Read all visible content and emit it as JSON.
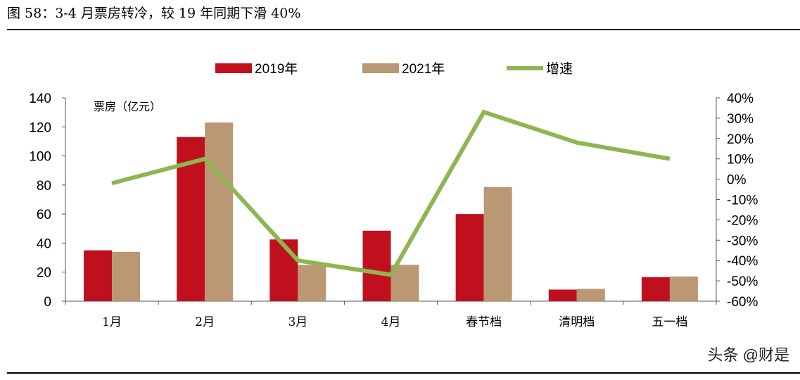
{
  "title": "图 58：3-4 月票房转冷，较 19 年同期下滑 40%",
  "watermark": "头条 @财是",
  "chart_data": {
    "type": "bar+line",
    "categories": [
      "1月",
      "2月",
      "3月",
      "4月",
      "春节档",
      "清明档",
      "五一档"
    ],
    "series": [
      {
        "name": "2019年",
        "type": "bar",
        "axis": "left",
        "color": "#C0101E",
        "values": [
          35,
          113,
          42.5,
          48.5,
          60,
          8,
          16.5
        ]
      },
      {
        "name": "2021年",
        "type": "bar",
        "axis": "left",
        "color": "#B99873",
        "values": [
          34,
          123,
          25,
          25,
          78.5,
          8.5,
          17
        ]
      },
      {
        "name": "增速",
        "type": "line",
        "axis": "right",
        "color": "#8DB653",
        "values": [
          -2,
          10,
          -40,
          -47,
          33,
          18,
          10
        ]
      }
    ],
    "ylabel": "票房（亿元）",
    "ylim": [
      0,
      140
    ],
    "yticks": [
      "0",
      "20",
      "40",
      "60",
      "80",
      "100",
      "120",
      "140"
    ],
    "y2lim": [
      -60,
      40
    ],
    "y2ticks": [
      "-60%",
      "-50%",
      "-40%",
      "-30%",
      "-20%",
      "-10%",
      "0%",
      "10%",
      "20%",
      "30%",
      "40%"
    ],
    "legend": "top",
    "grid": false
  }
}
